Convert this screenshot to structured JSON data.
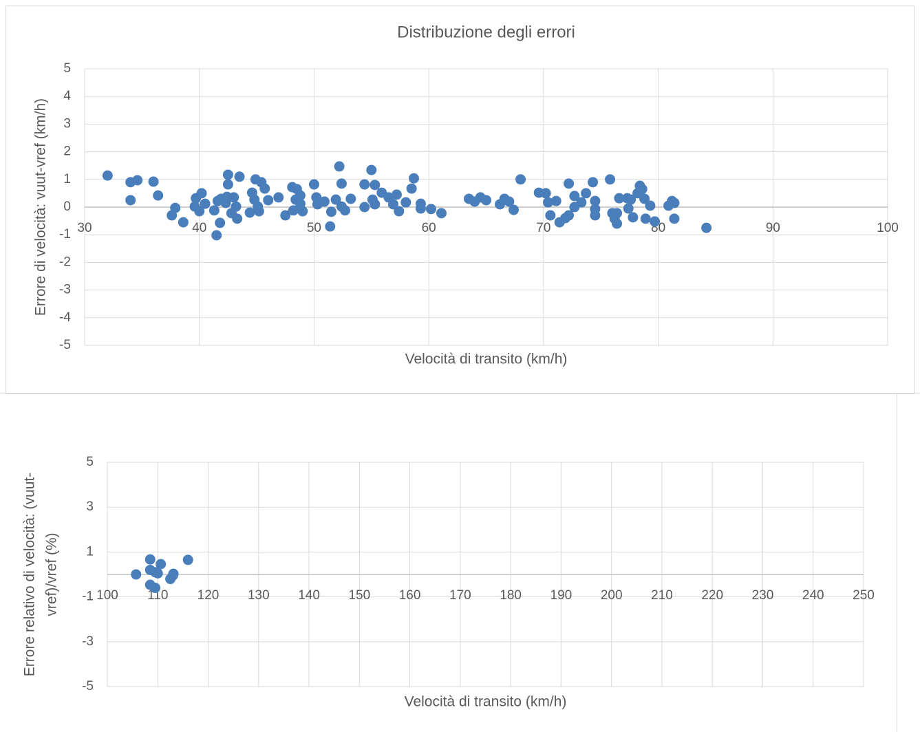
{
  "chart_data": [
    {
      "type": "scatter",
      "title": "Distribuzione degli errori",
      "xlabel": "Velocità di transito (km/h)",
      "ylabel": "Errore di velocità: vuut-vref  (km/h)",
      "xlim": [
        30,
        100
      ],
      "xticks": [
        30,
        40,
        50,
        60,
        70,
        80,
        90,
        100
      ],
      "ylim": [
        -5,
        5
      ],
      "yticks": [
        -5,
        -4,
        -3,
        -2,
        -1,
        0,
        1,
        2,
        3,
        4,
        5
      ],
      "grid": true,
      "series": [
        {
          "color": "#4a7ebb",
          "x": [
            32.0,
            34.0,
            34.0,
            34.6,
            36.0,
            36.4,
            37.6,
            37.9,
            38.6,
            39.7,
            39.6,
            40.0,
            40.2,
            40.5,
            41.3,
            41.5,
            41.6,
            41.8,
            41.9,
            42.3,
            42.4,
            42.5,
            42.5,
            42.8,
            43.0,
            43.2,
            43.3,
            43.5,
            44.4,
            44.6,
            44.8,
            44.9,
            45.1,
            45.2,
            45.4,
            45.7,
            46.0,
            46.9,
            47.5,
            48.1,
            48.2,
            48.4,
            48.5,
            48.8,
            48.8,
            49.0,
            50.0,
            50.2,
            50.3,
            50.9,
            51.4,
            51.5,
            51.9,
            52.2,
            52.4,
            52.4,
            52.7,
            53.2,
            54.4,
            54.4,
            55.0,
            55.1,
            55.3,
            55.3,
            55.9,
            56.5,
            56.9,
            57.2,
            57.4,
            58.0,
            58.5,
            58.7,
            59.3,
            59.3,
            60.2,
            61.1,
            63.5,
            64.0,
            64.5,
            65.0,
            66.2,
            66.6,
            67.0,
            67.4,
            68.0,
            69.6,
            70.2,
            70.4,
            70.6,
            71.1,
            71.4,
            71.9,
            72.2,
            72.2,
            72.7,
            72.7,
            73.3,
            73.7,
            74.3,
            74.5,
            74.5,
            74.5,
            75.8,
            76.0,
            76.2,
            76.4,
            76.4,
            76.6,
            77.3,
            77.4,
            77.6,
            77.8,
            78.2,
            78.4,
            78.6,
            78.8,
            78.9,
            79.3,
            79.7,
            80.9,
            81.2,
            81.4,
            81.4,
            84.2
          ],
          "values": [
            1.14,
            0.9,
            0.25,
            0.97,
            0.92,
            0.42,
            -0.3,
            -0.03,
            -0.55,
            0.32,
            0.02,
            -0.15,
            0.5,
            0.12,
            -0.12,
            -1.02,
            0.22,
            -0.57,
            0.3,
            0.15,
            0.37,
            0.82,
            1.17,
            -0.22,
            0.35,
            0.02,
            -0.42,
            1.1,
            -0.2,
            0.52,
            0.27,
            1.0,
            0.02,
            -0.15,
            0.9,
            0.67,
            0.25,
            0.35,
            -0.3,
            0.72,
            -0.12,
            0.27,
            0.65,
            0.12,
            0.42,
            -0.15,
            0.82,
            0.35,
            0.1,
            0.2,
            -0.7,
            -0.17,
            0.27,
            1.47,
            0.85,
            0.02,
            -0.12,
            0.3,
            0.82,
            0,
            1.34,
            0.27,
            0.1,
            0.8,
            0.52,
            0.35,
            0.1,
            0.45,
            -0.15,
            0.17,
            0.67,
            1.04,
            0.12,
            -0.05,
            -0.07,
            -0.22,
            0.3,
            0.2,
            0.35,
            0.25,
            0.1,
            0.3,
            0.2,
            -0.1,
            1.0,
            0.52,
            0.5,
            0.17,
            -0.3,
            0.22,
            -0.55,
            -0.4,
            -0.3,
            0.85,
            0.4,
            0,
            0.17,
            0.5,
            0.9,
            0.22,
            -0.07,
            -0.3,
            1.0,
            -0.22,
            -0.42,
            -0.6,
            -0.22,
            0.32,
            0.32,
            -0.05,
            0.27,
            -0.37,
            0.5,
            0.77,
            0.65,
            0.3,
            -0.42,
            0.05,
            -0.52,
            0.05,
            0.22,
            0.15,
            -0.42,
            -0.75
          ]
        }
      ]
    },
    {
      "type": "scatter",
      "xlabel": "Velocità di transito (km/h)",
      "ylabel": [
        "Errore relativo di velocità: (vuut-",
        "vref)/vref   (%)"
      ],
      "xlim": [
        100,
        250
      ],
      "xticks": [
        100,
        110,
        120,
        130,
        140,
        150,
        160,
        170,
        180,
        190,
        200,
        210,
        220,
        230,
        240,
        250
      ],
      "ylim": [
        -5,
        5
      ],
      "yticks": [
        -5,
        -3,
        -1,
        1,
        3,
        5
      ],
      "grid": true,
      "series": [
        {
          "color": "#4a7ebb",
          "x": [
            105.7,
            108.5,
            108.5,
            109.5,
            110.0,
            110.6,
            116.0,
            113.1,
            112.5,
            113.0,
            108.5,
            109.5
          ],
          "values": [
            0,
            0.67,
            0.2,
            0.1,
            0.05,
            0.46,
            0.65,
            0.03,
            -0.2,
            -0.05,
            -0.46,
            -0.6
          ]
        }
      ]
    }
  ]
}
